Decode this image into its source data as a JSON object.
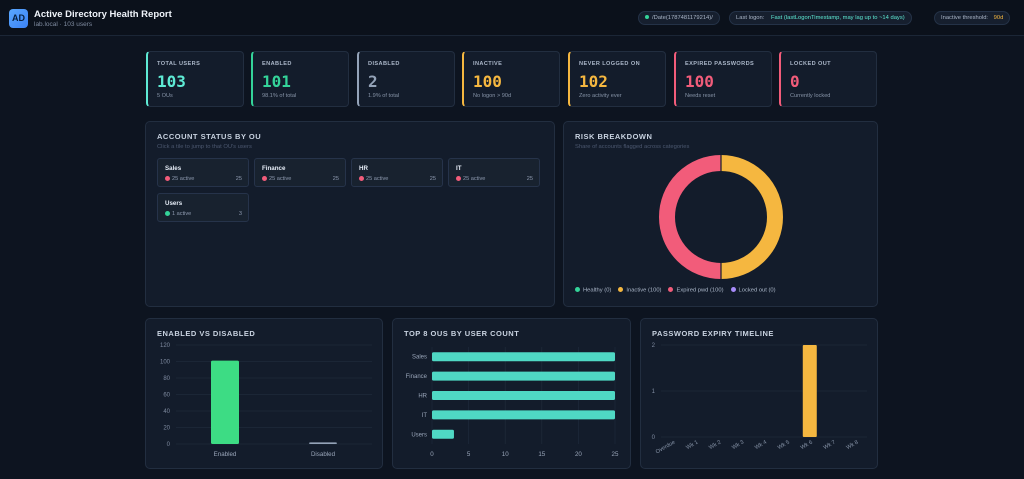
{
  "header": {
    "logo": "AD",
    "title": "Active Directory Health Report",
    "subtitle": "lab.local · 103 users",
    "date_label": "/Date(1787481179214)/",
    "last_logon_label": "Last logon:",
    "last_logon_value": "Fast (lastLogonTimestamp, may lag up to ~14 days)",
    "inactive_label": "Inactive threshold:",
    "inactive_value": "90d"
  },
  "stats": [
    {
      "label": "TOTAL USERS",
      "value": "103",
      "sub": "5 OUs",
      "color": "#5eead4"
    },
    {
      "label": "ENABLED",
      "value": "101",
      "sub": "98.1% of total",
      "color": "#34d399"
    },
    {
      "label": "DISABLED",
      "value": "2",
      "sub": "1.9% of total",
      "color": "#94a3b8"
    },
    {
      "label": "INACTIVE",
      "value": "100",
      "sub": "No logon > 90d",
      "color": "#f5b740"
    },
    {
      "label": "NEVER LOGGED ON",
      "value": "102",
      "sub": "Zero activity ever",
      "color": "#f5b740"
    },
    {
      "label": "EXPIRED PASSWORDS",
      "value": "100",
      "sub": "Needs reset",
      "color": "#f25c7a"
    },
    {
      "label": "LOCKED OUT",
      "value": "0",
      "sub": "Currently locked",
      "color": "#f25c7a"
    }
  ],
  "ou_panel": {
    "title": "ACCOUNT STATUS BY OU",
    "subtitle": "Click a tile to jump to that OU's users",
    "tiles": [
      {
        "name": "Sales",
        "status": "25 active",
        "count": "25",
        "dot": "#f25c7a"
      },
      {
        "name": "Finance",
        "status": "25 active",
        "count": "25",
        "dot": "#f25c7a"
      },
      {
        "name": "HR",
        "status": "25 active",
        "count": "25",
        "dot": "#f25c7a"
      },
      {
        "name": "IT",
        "status": "25 active",
        "count": "25",
        "dot": "#f25c7a"
      },
      {
        "name": "Users",
        "status": "1 active",
        "count": "3",
        "dot": "#34d399"
      }
    ]
  },
  "risk_panel": {
    "title": "RISK BREAKDOWN",
    "subtitle": "Share of accounts flagged across categories",
    "legend": [
      {
        "label": "Healthy (0)",
        "color": "#34d399"
      },
      {
        "label": "Inactive (100)",
        "color": "#f5b740"
      },
      {
        "label": "Expired pwd (100)",
        "color": "#f25c7a"
      },
      {
        "label": "Locked out (0)",
        "color": "#a78bfa"
      }
    ]
  },
  "enabled_panel": {
    "title": "ENABLED VS DISABLED"
  },
  "top_ou_panel": {
    "title": "TOP 8 OUS BY USER COUNT"
  },
  "pwd_panel": {
    "title": "PASSWORD EXPIRY TIMELINE"
  },
  "chart_data": [
    {
      "type": "pie",
      "title": "RISK BREAKDOWN",
      "categories": [
        "Healthy",
        "Inactive",
        "Expired pwd",
        "Locked out"
      ],
      "values": [
        0,
        100,
        100,
        0
      ],
      "colors": [
        "#34d399",
        "#f5b740",
        "#f25c7a",
        "#a78bfa"
      ],
      "donut": true,
      "legend": "bottom-left"
    },
    {
      "type": "bar",
      "title": "ENABLED VS DISABLED",
      "categories": [
        "Enabled",
        "Disabled"
      ],
      "values": [
        101,
        2
      ],
      "colors": [
        "#3ddc84",
        "#94a3b8"
      ],
      "ylim": [
        0,
        120
      ],
      "yticks": [
        0,
        20,
        40,
        60,
        80,
        100,
        120
      ],
      "grid": true
    },
    {
      "type": "bar",
      "orientation": "horizontal",
      "title": "TOP 8 OUS BY USER COUNT",
      "categories": [
        "Sales",
        "Finance",
        "HR",
        "IT",
        "Users"
      ],
      "values": [
        25,
        25,
        25,
        25,
        3
      ],
      "color": "#4fd8c4",
      "xlim": [
        0,
        25
      ],
      "xticks": [
        0,
        5,
        10,
        15,
        20,
        25
      ],
      "grid": true
    },
    {
      "type": "bar",
      "title": "PASSWORD EXPIRY TIMELINE",
      "categories": [
        "Overdue",
        "Wk 1",
        "Wk 2",
        "Wk 3",
        "Wk 4",
        "Wk 5",
        "Wk 6",
        "Wk 7",
        "Wk 8"
      ],
      "values": [
        0,
        0,
        0,
        0,
        0,
        0,
        2,
        0,
        0
      ],
      "color": "#f5b740",
      "ylim": [
        0,
        2
      ],
      "yticks": [
        0,
        1,
        2
      ],
      "grid": true
    }
  ]
}
